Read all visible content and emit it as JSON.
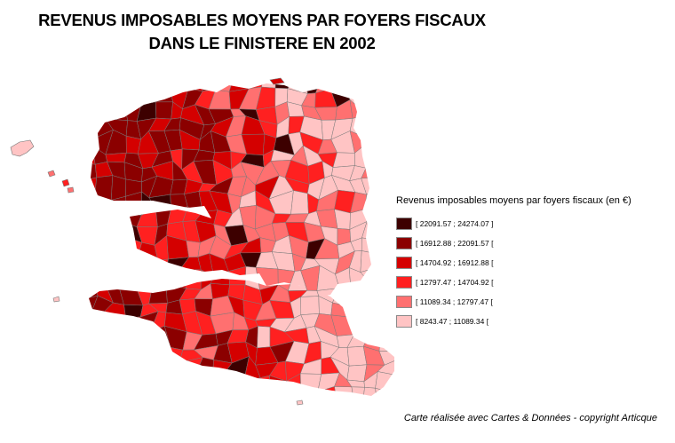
{
  "title": {
    "line1": "REVENUS IMPOSABLES MOYENS PAR FOYERS FISCAUX",
    "line2": "DANS LE FINISTERE EN 2002"
  },
  "legend": {
    "title": "Revenus imposables moyens par foyers fiscaux (en €)",
    "classes": [
      {
        "label": "[ 22091.57 ; 24274.07 ]",
        "color": "#3d0000"
      },
      {
        "label": "[ 16912.88 ; 22091.57 [",
        "color": "#8b0000"
      },
      {
        "label": "[ 14704.92 ; 16912.88 [",
        "color": "#d40000"
      },
      {
        "label": "[ 12797.47 ; 14704.92 [",
        "color": "#ff2020"
      },
      {
        "label": "[ 11089.34 ; 12797.47 [",
        "color": "#ff7070"
      },
      {
        "label": "[ 8243.47 ; 11089.34 [",
        "color": "#ffc4c4"
      }
    ]
  },
  "credit": "Carte réalisée avec Cartes & Données - copyright Articque"
}
